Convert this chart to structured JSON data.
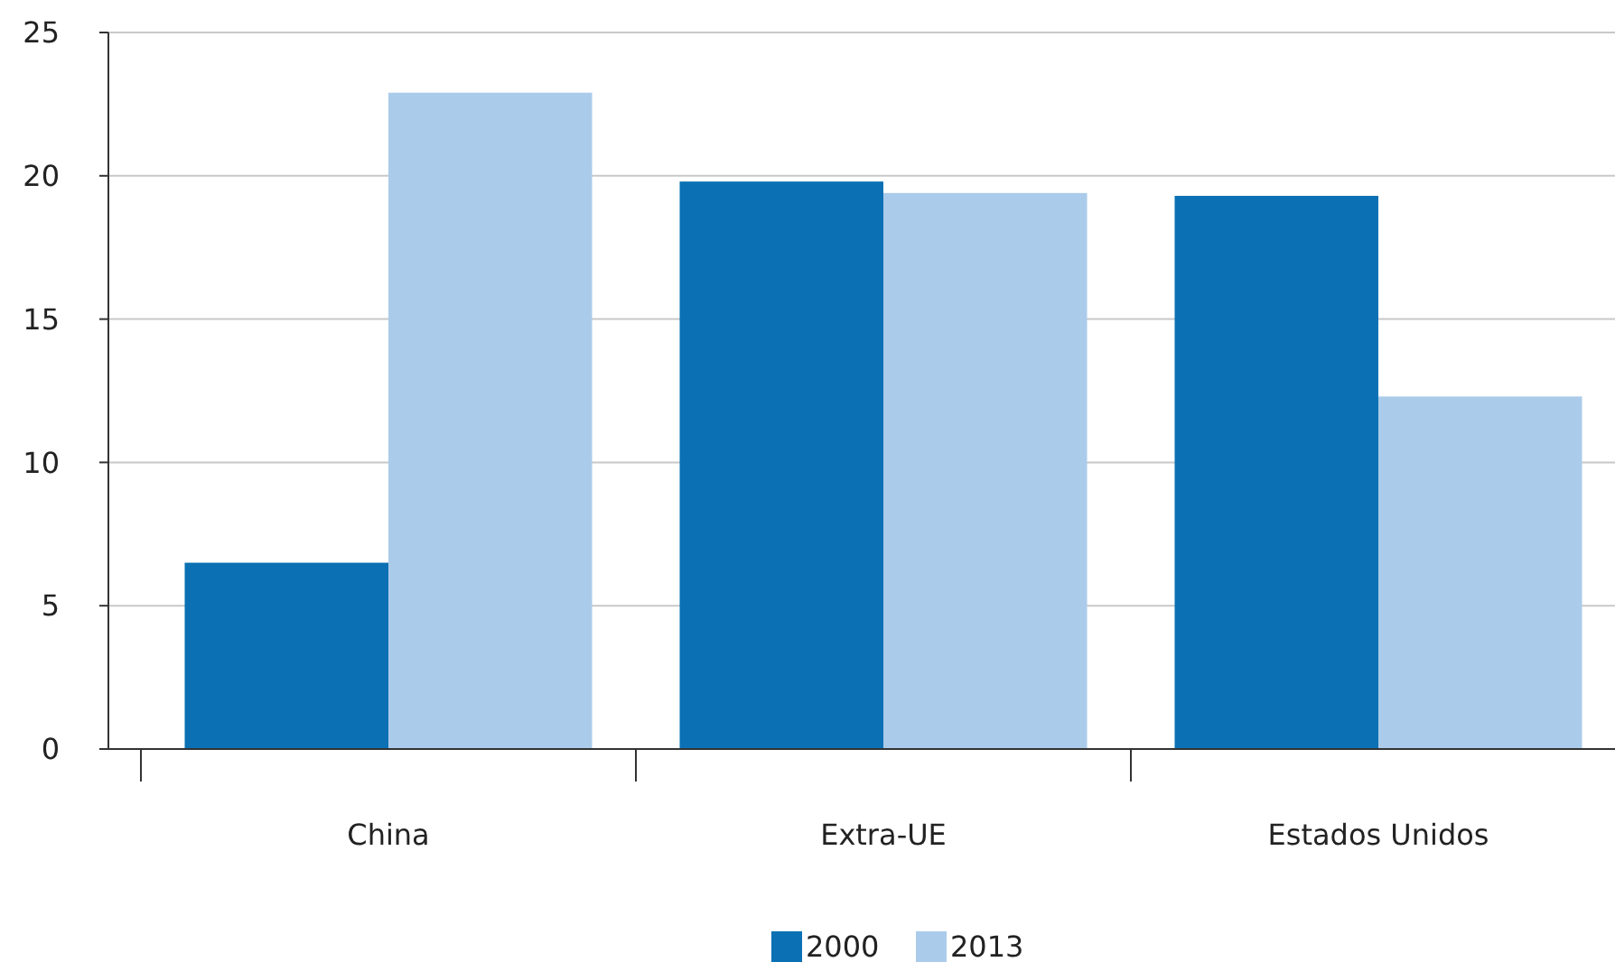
{
  "chart_data": {
    "type": "bar",
    "categories": [
      "China",
      "Extra-UE",
      "Estados Unidos"
    ],
    "series": [
      {
        "name": "2000",
        "color": "#0b71b4",
        "values": [
          6.5,
          19.8,
          19.3
        ]
      },
      {
        "name": "2013",
        "color": "#abcbea",
        "values": [
          22.9,
          19.4,
          12.3
        ]
      }
    ],
    "ylim": [
      0,
      25
    ],
    "yticks": [
      0,
      5,
      10,
      15,
      20,
      25
    ],
    "grid": "y",
    "legend": "bottom"
  }
}
